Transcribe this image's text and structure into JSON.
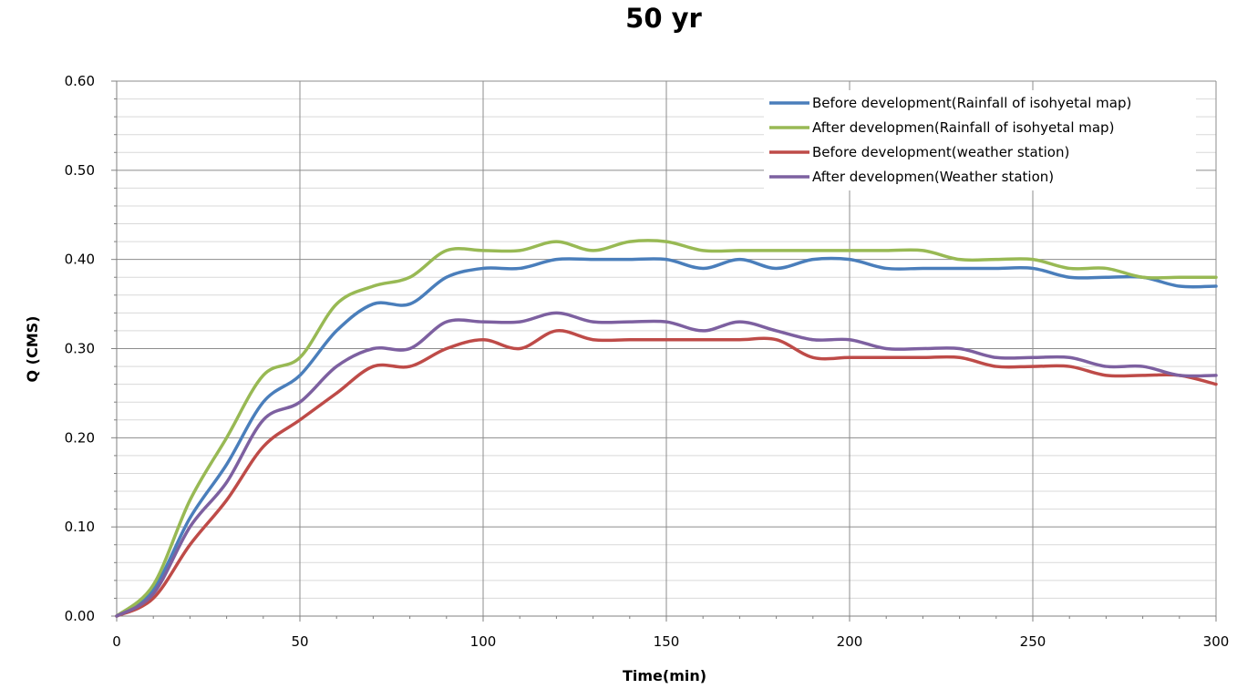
{
  "chart_data": {
    "type": "line",
    "title": "50 yr",
    "xlabel": "Time(min)",
    "ylabel": "Q (CMS)",
    "xlim": [
      0,
      300
    ],
    "ylim": [
      0,
      0.6
    ],
    "x_ticks": [
      "0",
      "50",
      "100",
      "150",
      "200",
      "250",
      "300"
    ],
    "y_ticks": [
      "0.00",
      "0.10",
      "0.20",
      "0.30",
      "0.40",
      "0.50",
      "0.60"
    ],
    "grid": true,
    "legend_position": "top-right",
    "x": [
      0,
      10,
      20,
      30,
      40,
      50,
      60,
      70,
      80,
      90,
      100,
      110,
      120,
      130,
      140,
      150,
      160,
      170,
      180,
      190,
      200,
      210,
      220,
      230,
      240,
      250,
      260,
      270,
      280,
      290,
      300
    ],
    "series": [
      {
        "name": "Before development(Rainfall of isohyetal map)",
        "color": "#4a7ebb",
        "values": [
          0,
          0.03,
          0.11,
          0.17,
          0.24,
          0.27,
          0.32,
          0.35,
          0.35,
          0.38,
          0.39,
          0.39,
          0.4,
          0.4,
          0.4,
          0.4,
          0.39,
          0.4,
          0.39,
          0.4,
          0.4,
          0.39,
          0.39,
          0.39,
          0.39,
          0.39,
          0.38,
          0.38,
          0.38,
          0.37,
          0.37
        ]
      },
      {
        "name": "After developmen(Rainfall of isohyetal map)",
        "color": "#98b954",
        "values": [
          0,
          0.035,
          0.13,
          0.2,
          0.27,
          0.29,
          0.35,
          0.37,
          0.38,
          0.41,
          0.41,
          0.41,
          0.42,
          0.41,
          0.42,
          0.42,
          0.41,
          0.41,
          0.41,
          0.41,
          0.41,
          0.41,
          0.41,
          0.4,
          0.4,
          0.4,
          0.39,
          0.39,
          0.38,
          0.38,
          0.38
        ]
      },
      {
        "name": "Before development(weather station)",
        "color": "#be4b48",
        "values": [
          0,
          0.02,
          0.08,
          0.13,
          0.19,
          0.22,
          0.25,
          0.28,
          0.28,
          0.3,
          0.31,
          0.3,
          0.32,
          0.31,
          0.31,
          0.31,
          0.31,
          0.31,
          0.31,
          0.29,
          0.29,
          0.29,
          0.29,
          0.29,
          0.28,
          0.28,
          0.28,
          0.27,
          0.27,
          0.27,
          0.26
        ]
      },
      {
        "name": "After developmen(Weather station)",
        "color": "#7d60a0",
        "values": [
          0,
          0.025,
          0.1,
          0.15,
          0.22,
          0.24,
          0.28,
          0.3,
          0.3,
          0.33,
          0.33,
          0.33,
          0.34,
          0.33,
          0.33,
          0.33,
          0.32,
          0.33,
          0.32,
          0.31,
          0.31,
          0.3,
          0.3,
          0.3,
          0.29,
          0.29,
          0.29,
          0.28,
          0.28,
          0.27,
          0.27
        ]
      }
    ]
  }
}
